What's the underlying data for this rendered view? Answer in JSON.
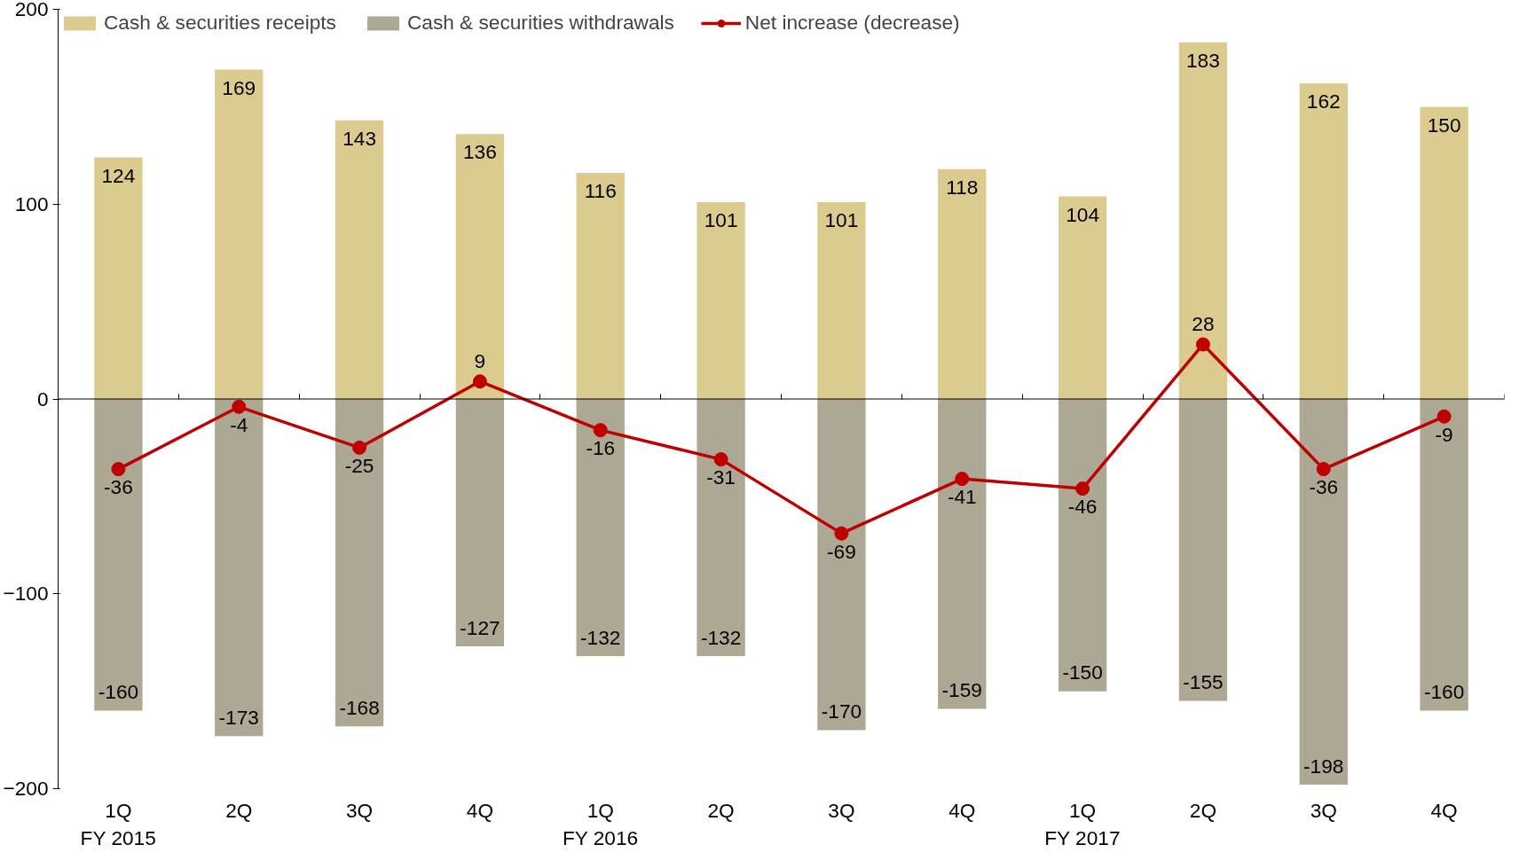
{
  "chart_data": {
    "type": "bar",
    "stacked": true,
    "categories": [
      "1Q\nFY 2015",
      "2Q",
      "3Q",
      "4Q",
      "1Q\nFY 2016",
      "2Q",
      "3Q",
      "4Q",
      "1Q\nFY 2017",
      "2Q",
      "3Q",
      "4Q"
    ],
    "series": [
      {
        "name": "Cash & securities receipts",
        "color": "#dccb8e",
        "values": [
          124,
          169,
          143,
          136,
          116,
          101,
          101,
          118,
          104,
          183,
          162,
          150
        ]
      },
      {
        "name": "Cash & securities withdrawals",
        "color": "#aca893",
        "values": [
          -160,
          -173,
          -168,
          -127,
          -132,
          -132,
          -170,
          -159,
          -150,
          -155,
          -198,
          -160
        ]
      },
      {
        "name": "Net increase (decrease)",
        "type": "line",
        "color": "#c00000",
        "marker": "circle",
        "values": [
          -36,
          -4,
          -25,
          9,
          -16,
          -31,
          -69,
          -41,
          -46,
          28,
          -36,
          -9
        ]
      }
    ],
    "ylim": [
      -200,
      200
    ],
    "yticks": [
      -200,
      -100,
      0,
      100,
      200
    ],
    "ref_lines": [
      {
        "axis": "y",
        "value": 0,
        "color": "#000000"
      }
    ],
    "grid": false,
    "legend": "top",
    "data_labels": true
  }
}
